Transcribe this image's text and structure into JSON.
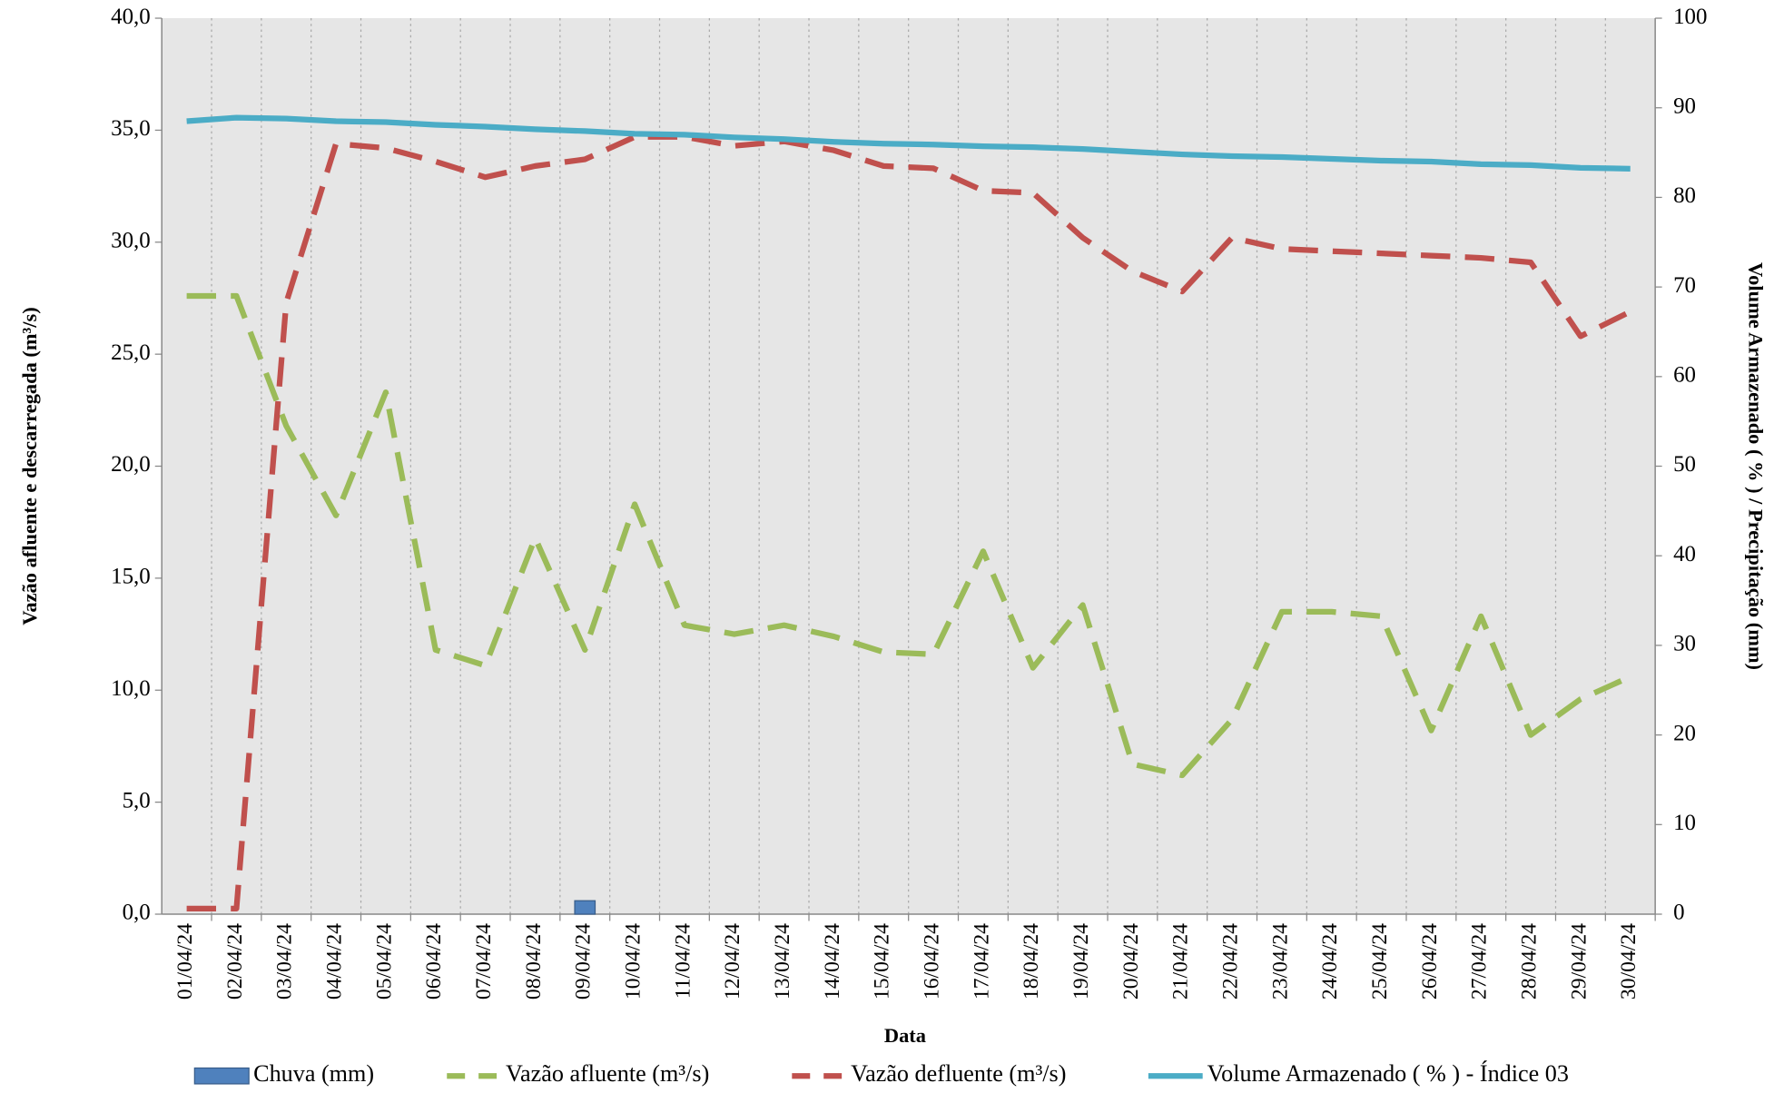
{
  "chart_data": {
    "type": "line",
    "x_label": "Data",
    "y_label": "Vazão afluente e descarregada (m³/s)",
    "y2_label": "Volume Armazenado ( % ) / Precipitação  (mm)",
    "categories": [
      "01/04/24",
      "02/04/24",
      "03/04/24",
      "04/04/24",
      "05/04/24",
      "06/04/24",
      "07/04/24",
      "08/04/24",
      "09/04/24",
      "10/04/24",
      "11/04/24",
      "12/04/24",
      "13/04/24",
      "14/04/24",
      "15/04/24",
      "16/04/24",
      "17/04/24",
      "18/04/24",
      "19/04/24",
      "20/04/24",
      "21/04/24",
      "22/04/24",
      "23/04/24",
      "24/04/24",
      "25/04/24",
      "26/04/24",
      "27/04/24",
      "28/04/24",
      "29/04/24",
      "30/04/24"
    ],
    "ylim": [
      0,
      40
    ],
    "yticks": [
      {
        "value": 0,
        "label": "0,0"
      },
      {
        "value": 5,
        "label": "5,0"
      },
      {
        "value": 10,
        "label": "10,0"
      },
      {
        "value": 15,
        "label": "15,0"
      },
      {
        "value": 20,
        "label": "20,0"
      },
      {
        "value": 25,
        "label": "25,0"
      },
      {
        "value": 30,
        "label": "30,0"
      },
      {
        "value": 35,
        "label": "35,0"
      },
      {
        "value": 40,
        "label": "40,0"
      }
    ],
    "y2lim": [
      0,
      100
    ],
    "y2ticks": [
      0,
      10,
      20,
      30,
      40,
      50,
      60,
      70,
      80,
      90,
      100
    ],
    "legend": "bottom",
    "series": [
      {
        "name": "Chuva (mm)",
        "type": "bar",
        "axis": "y2",
        "color": "#4f81bd",
        "values": [
          0,
          0,
          0,
          0,
          0,
          0,
          0,
          0,
          1.5,
          0,
          0,
          0,
          0,
          0,
          0,
          0,
          0,
          0,
          0,
          0,
          0,
          0,
          0,
          0,
          0,
          0,
          0,
          0,
          0,
          0
        ]
      },
      {
        "name": "Vazão afluente (m³/s)",
        "type": "line",
        "style": "dashed",
        "color": "#9bbb59",
        "values": [
          27.6,
          27.6,
          21.8,
          17.8,
          23.3,
          11.8,
          11.1,
          16.8,
          11.8,
          18.3,
          12.9,
          12.5,
          12.9,
          12.4,
          11.7,
          11.6,
          16.2,
          11.0,
          13.8,
          6.7,
          6.2,
          8.7,
          13.5,
          13.5,
          13.3,
          8.2,
          13.3,
          8.0,
          9.6,
          10.6
        ]
      },
      {
        "name": "Vazão defluente (m³/s)",
        "type": "line",
        "style": "dashed",
        "color": "#c0504d",
        "values": [
          0.25,
          0.25,
          27.3,
          34.4,
          34.2,
          33.6,
          32.9,
          33.4,
          33.7,
          34.7,
          34.7,
          34.3,
          34.5,
          34.1,
          33.4,
          33.3,
          32.3,
          32.2,
          30.2,
          28.7,
          27.8,
          30.2,
          29.7,
          29.6,
          29.5,
          29.4,
          29.3,
          29.1,
          25.8,
          26.9
        ]
      },
      {
        "name": "Volume Armazenado ( % ) - Índice 03",
        "type": "line",
        "style": "solid",
        "axis": "y2",
        "color": "#4bacc6",
        "values": [
          88.5,
          88.9,
          88.8,
          88.5,
          88.4,
          88.1,
          87.9,
          87.6,
          87.4,
          87.1,
          87.0,
          86.7,
          86.5,
          86.2,
          86.0,
          85.9,
          85.7,
          85.6,
          85.4,
          85.1,
          84.8,
          84.6,
          84.5,
          84.3,
          84.1,
          84.0,
          83.7,
          83.6,
          83.3,
          83.2
        ]
      }
    ]
  }
}
